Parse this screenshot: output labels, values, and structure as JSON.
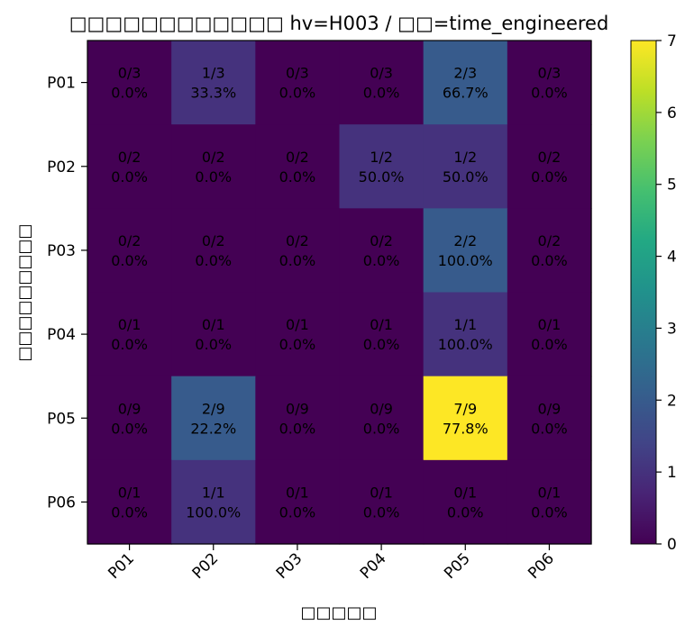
{
  "chart_data": {
    "type": "heatmap",
    "title": "□□□□□□□□□□□□ hv=H003 / □□=time_engineered",
    "xlabel": "□□□□□",
    "ylabel": "□□□□□□□□□",
    "x_categories": [
      "P01",
      "P02",
      "P03",
      "P04",
      "P05",
      "P06"
    ],
    "y_categories": [
      "P01",
      "P02",
      "P03",
      "P04",
      "P05",
      "P06"
    ],
    "values": [
      [
        0,
        1,
        0,
        0,
        2,
        0
      ],
      [
        0,
        0,
        0,
        1,
        1,
        0
      ],
      [
        0,
        0,
        0,
        0,
        2,
        0
      ],
      [
        0,
        0,
        0,
        0,
        1,
        0
      ],
      [
        0,
        2,
        0,
        0,
        7,
        0
      ],
      [
        0,
        1,
        0,
        0,
        0,
        0
      ]
    ],
    "row_totals": [
      3,
      2,
      2,
      1,
      9,
      1
    ],
    "cell_labels": [
      [
        "0/3\n0.0%",
        "1/3\n33.3%",
        "0/3\n0.0%",
        "0/3\n0.0%",
        "2/3\n66.7%",
        "0/3\n0.0%"
      ],
      [
        "0/2\n0.0%",
        "0/2\n0.0%",
        "0/2\n0.0%",
        "1/2\n50.0%",
        "1/2\n50.0%",
        "0/2\n0.0%"
      ],
      [
        "0/2\n0.0%",
        "0/2\n0.0%",
        "0/2\n0.0%",
        "0/2\n0.0%",
        "2/2\n100.0%",
        "0/2\n0.0%"
      ],
      [
        "0/1\n0.0%",
        "0/1\n0.0%",
        "0/1\n0.0%",
        "0/1\n0.0%",
        "1/1\n100.0%",
        "0/1\n0.0%"
      ],
      [
        "0/9\n0.0%",
        "2/9\n22.2%",
        "0/9\n0.0%",
        "0/9\n0.0%",
        "7/9\n77.8%",
        "0/9\n0.0%"
      ],
      [
        "0/1\n0.0%",
        "1/1\n100.0%",
        "0/1\n0.0%",
        "0/1\n0.0%",
        "0/1\n0.0%",
        "0/1\n0.0%"
      ]
    ],
    "colormap": "viridis",
    "vmin": 0,
    "vmax": 7,
    "colorbar_ticks": [
      "0",
      "1",
      "2",
      "3",
      "4",
      "5",
      "6",
      "7"
    ],
    "colorbar_tick_values": [
      0,
      1,
      2,
      3,
      4,
      5,
      6,
      7
    ],
    "grid": false,
    "colors": {
      "text_dark_cell": "#000000",
      "text_light_cell": "#000000"
    }
  }
}
